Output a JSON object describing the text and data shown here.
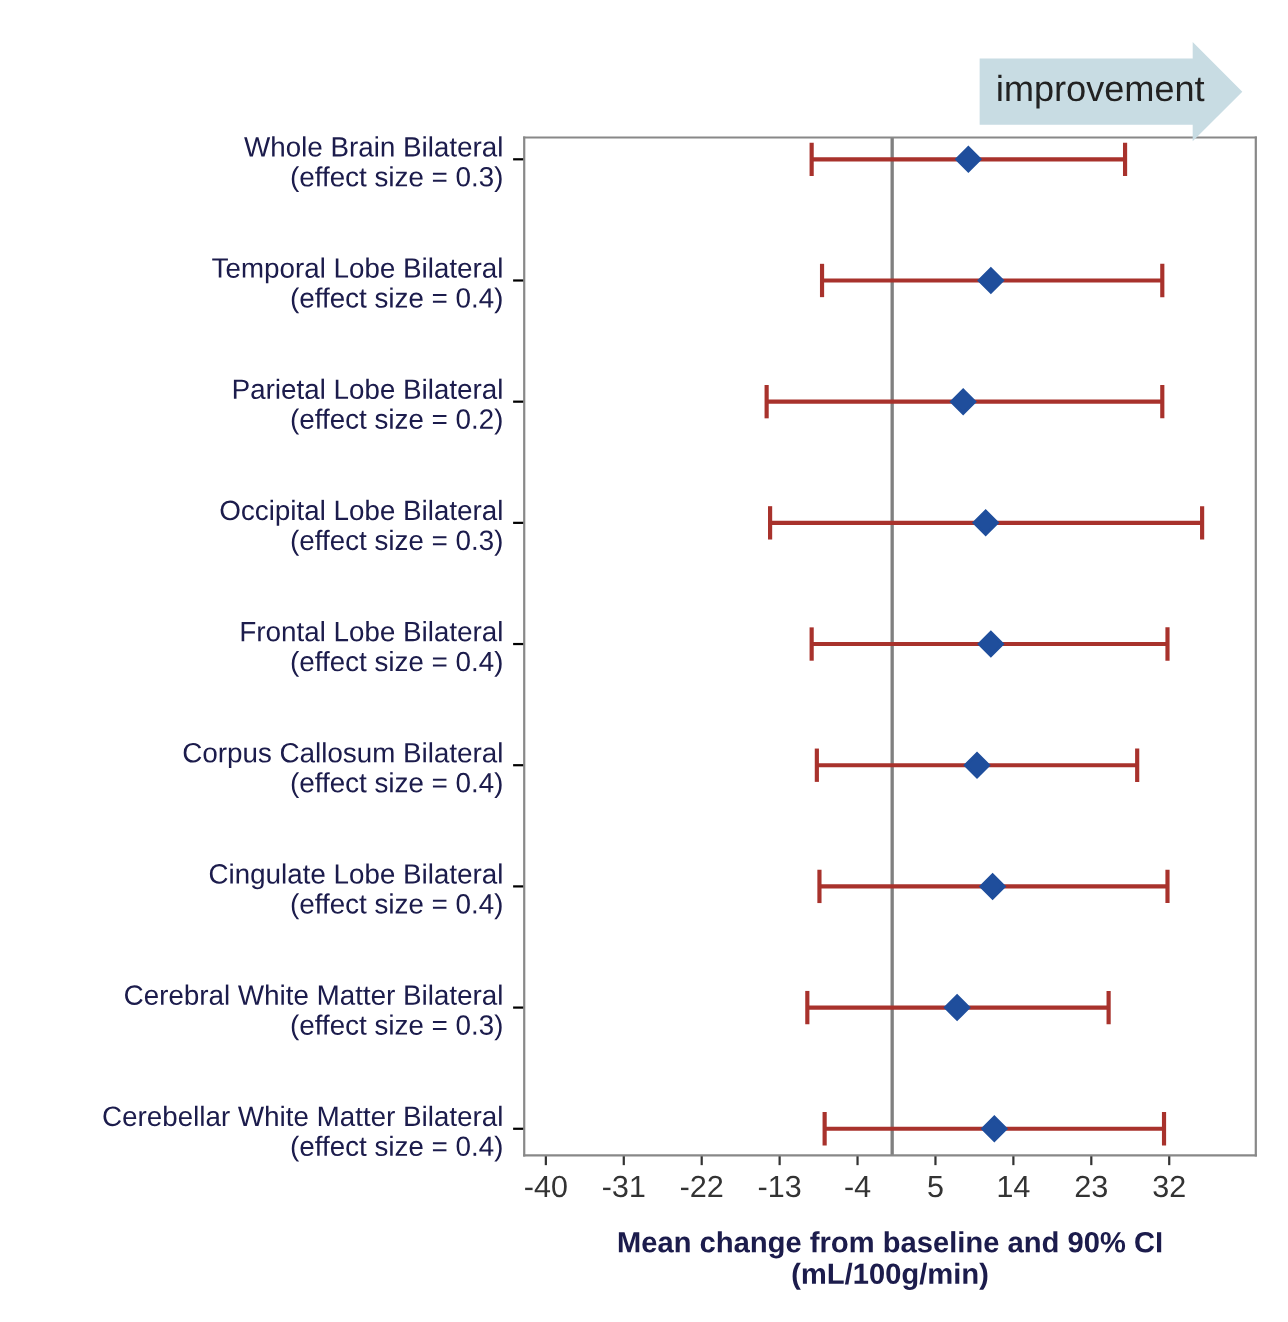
{
  "chart_data": {
    "type": "scatter",
    "orientation": "horizontal",
    "categories": [
      "Whole Brain Bilateral\n(effect size = 0.3)",
      "Temporal Lobe Bilateral\n(effect size = 0.4)",
      "Parietal Lobe Bilateral\n(effect size = 0.2)",
      "Occipital Lobe Bilateral\n(effect size = 0.3)",
      "Frontal Lobe Bilateral\n(effect size = 0.4)",
      "Corpus Callosum Bilateral\n(effect size = 0.4)",
      "Cingulate Lobe Bilateral\n(effect size = 0.4)",
      "Cerebral White Matter Bilateral\n(effect size = 0.3)",
      "Cerebellar White Matter Bilateral\n(effect size = 0.4)"
    ],
    "series": [
      {
        "color": "#1f4e9c",
        "values": [
          8.8,
          11.4,
          8.2,
          10.8,
          11.4,
          9.8,
          11.6,
          7.5,
          11.8
        ],
        "errors": [
          [
            -9.3,
            26.9
          ],
          [
            -8.1,
            31.2
          ],
          [
            -14.5,
            31.2
          ],
          [
            -14.1,
            35.8
          ],
          [
            -9.3,
            31.8
          ],
          [
            -8.7,
            28.3
          ],
          [
            -8.4,
            31.8
          ],
          [
            -9.8,
            25.0
          ],
          [
            -7.8,
            31.4
          ]
        ]
      }
    ],
    "xlabel": "Mean change from baseline and 90% CI\n(mL/100g/min)",
    "xlim": [
      -42.5,
      42
    ],
    "xticks": [
      -40,
      -31,
      -22,
      -13,
      -4,
      5,
      14,
      23,
      32
    ],
    "ref_lines": [
      {
        "axis": "x",
        "value": 0,
        "color": "#808080"
      }
    ],
    "annotations": [
      "improvement"
    ],
    "marker": "diamond",
    "grid": false,
    "legend": false
  }
}
